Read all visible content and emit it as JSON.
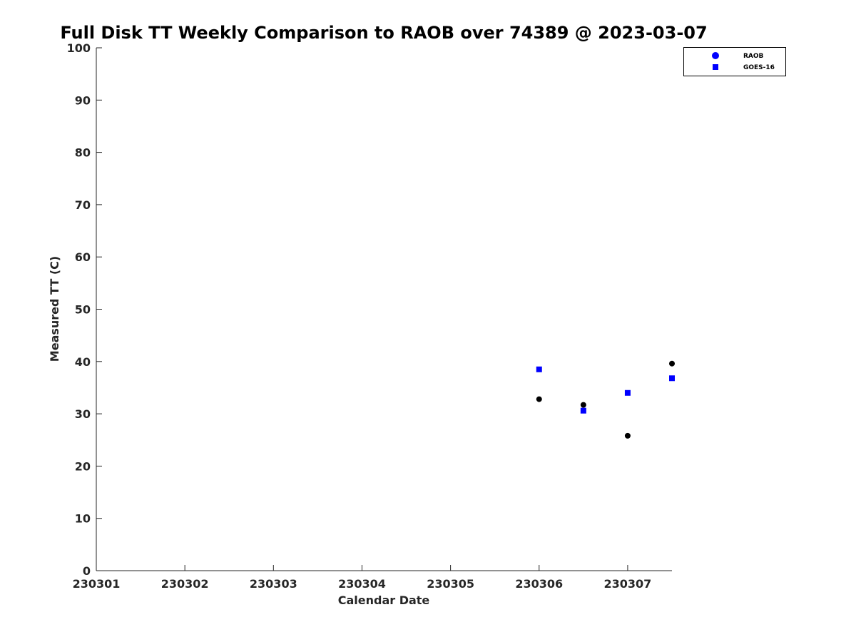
{
  "chart_data": {
    "type": "scatter",
    "title": "Full Disk TT Weekly Comparison to RAOB over 74389 @ 2023-03-07",
    "xlabel": "Calendar Date",
    "ylabel": "Measured TT (C)",
    "xlim": [
      0,
      6.5
    ],
    "ylim": [
      0,
      100
    ],
    "x_ticks": [
      {
        "value": 0,
        "label": "230301"
      },
      {
        "value": 1,
        "label": "230302"
      },
      {
        "value": 2,
        "label": "230303"
      },
      {
        "value": 3,
        "label": "230304"
      },
      {
        "value": 4,
        "label": "230305"
      },
      {
        "value": 5,
        "label": "230306"
      },
      {
        "value": 6,
        "label": "230307"
      }
    ],
    "y_ticks": [
      0,
      10,
      20,
      30,
      40,
      50,
      60,
      70,
      80,
      90,
      100
    ],
    "grid": false,
    "legend_position": "top-right",
    "series": [
      {
        "name": "RAOB",
        "marker": "circle",
        "color": "#000000",
        "legend_color": "#0000ff",
        "points": [
          {
            "x": 5.0,
            "y": 32.8
          },
          {
            "x": 5.5,
            "y": 31.7
          },
          {
            "x": 6.0,
            "y": 25.8
          },
          {
            "x": 6.5,
            "y": 39.6
          }
        ]
      },
      {
        "name": "GOES-16",
        "marker": "square",
        "color": "#0000ff",
        "legend_color": "#0000ff",
        "points": [
          {
            "x": 5.0,
            "y": 38.5
          },
          {
            "x": 5.5,
            "y": 30.6
          },
          {
            "x": 6.0,
            "y": 34.0
          },
          {
            "x": 6.5,
            "y": 36.8
          }
        ]
      }
    ]
  }
}
